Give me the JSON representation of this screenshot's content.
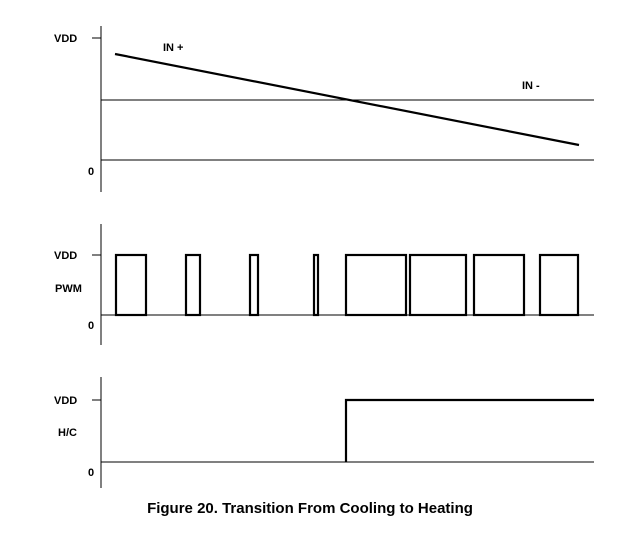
{
  "panels": {
    "inputs": {
      "vdd_label": "VDD",
      "zero_label": "0",
      "in_plus_label": "IN +",
      "in_minus_label": "IN -"
    },
    "pwm": {
      "vdd_label": "VDD",
      "zero_label": "0",
      "signal_label": "PWM"
    },
    "hc": {
      "vdd_label": "VDD",
      "zero_label": "0",
      "signal_label": "H/C"
    }
  },
  "caption": "Figure 20. Transition From Cooling to Heating"
}
